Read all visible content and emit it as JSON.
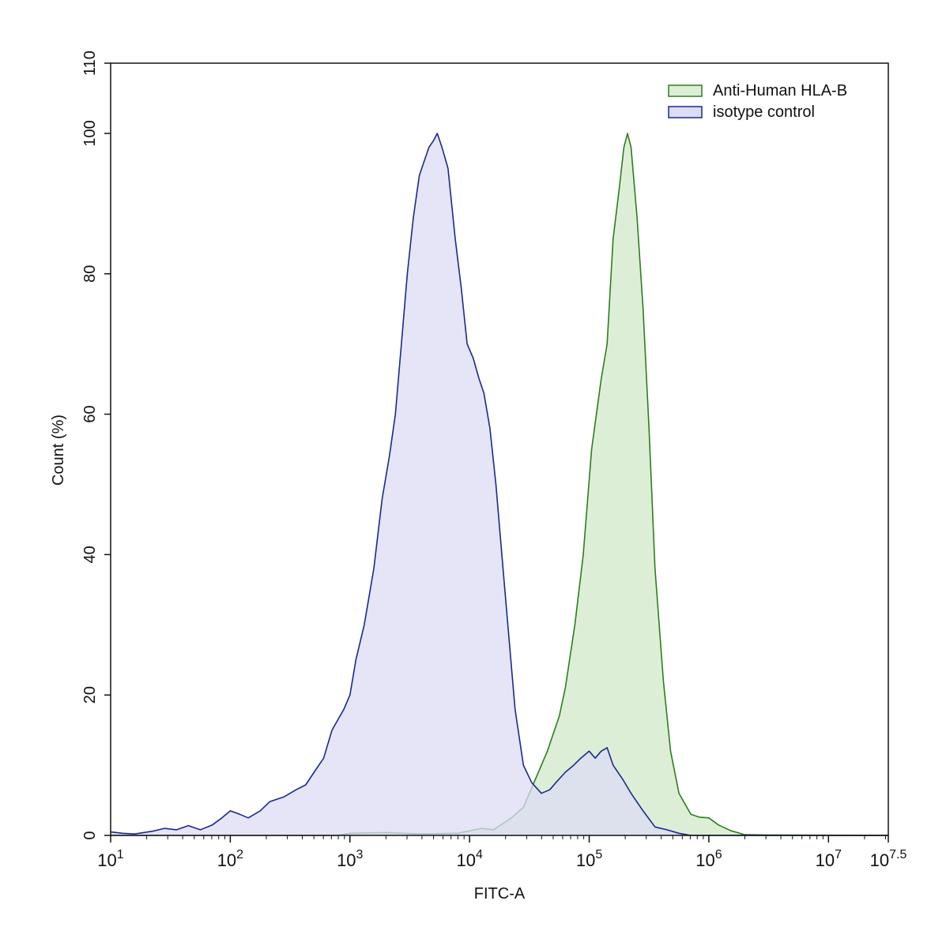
{
  "chart_data": {
    "type": "area",
    "x_scale": "log10",
    "xlim_log10": [
      1,
      7.5
    ],
    "ylim": [
      0,
      110
    ],
    "xlabel": "FITC-A",
    "ylabel": "Count  (%)",
    "y_ticks": [
      0,
      20,
      40,
      60,
      80,
      100,
      110
    ],
    "y_tick_labels": [
      "0",
      "20",
      "40",
      "60",
      "80",
      "100",
      "110"
    ],
    "x_tick_labels": [
      {
        "base": "10",
        "exp": "1",
        "log10": 1
      },
      {
        "base": "10",
        "exp": "2",
        "log10": 2
      },
      {
        "base": "10",
        "exp": "3",
        "log10": 3
      },
      {
        "base": "10",
        "exp": "4",
        "log10": 4
      },
      {
        "base": "10",
        "exp": "5",
        "log10": 5
      },
      {
        "base": "10",
        "exp": "6",
        "log10": 6
      },
      {
        "base": "10",
        "exp": "7",
        "log10": 7
      },
      {
        "base": "10",
        "exp": "7.5",
        "log10": 7.5
      }
    ],
    "legend_position": "top-right",
    "series": [
      {
        "name": "Anti-Human HLA-B",
        "stroke": "#2e7d1e",
        "fill": "#dcefd6",
        "points": [
          [
            1.0,
            0
          ],
          [
            2.0,
            0
          ],
          [
            2.9,
            0
          ],
          [
            3.0,
            0.3
          ],
          [
            3.3,
            0.4
          ],
          [
            3.6,
            0.2
          ],
          [
            3.9,
            0.3
          ],
          [
            4.1,
            1.0
          ],
          [
            4.2,
            0.8
          ],
          [
            4.35,
            2.5
          ],
          [
            4.45,
            4
          ],
          [
            4.55,
            8
          ],
          [
            4.65,
            12
          ],
          [
            4.75,
            17
          ],
          [
            4.8,
            21
          ],
          [
            4.88,
            30
          ],
          [
            4.95,
            40
          ],
          [
            5.02,
            55
          ],
          [
            5.1,
            65
          ],
          [
            5.15,
            70
          ],
          [
            5.2,
            85
          ],
          [
            5.25,
            92
          ],
          [
            5.29,
            98
          ],
          [
            5.32,
            100
          ],
          [
            5.35,
            98
          ],
          [
            5.4,
            88
          ],
          [
            5.45,
            75
          ],
          [
            5.5,
            58
          ],
          [
            5.55,
            38
          ],
          [
            5.62,
            22
          ],
          [
            5.68,
            12
          ],
          [
            5.75,
            6
          ],
          [
            5.85,
            3
          ],
          [
            5.92,
            2.6
          ],
          [
            6.0,
            2.5
          ],
          [
            6.08,
            1.5
          ],
          [
            6.18,
            0.7
          ],
          [
            6.3,
            0.1
          ],
          [
            6.5,
            0.05
          ],
          [
            7.5,
            0
          ]
        ]
      },
      {
        "name": "isotype control",
        "stroke": "#1a2a8c",
        "fill": "#dcdcf4",
        "points": [
          [
            1.0,
            0.5
          ],
          [
            1.1,
            0.3
          ],
          [
            1.2,
            0.2
          ],
          [
            1.35,
            0.6
          ],
          [
            1.45,
            1.0
          ],
          [
            1.55,
            0.8
          ],
          [
            1.65,
            1.4
          ],
          [
            1.75,
            0.8
          ],
          [
            1.85,
            1.5
          ],
          [
            1.93,
            2.5
          ],
          [
            2.0,
            3.5
          ],
          [
            2.08,
            3.0
          ],
          [
            2.15,
            2.5
          ],
          [
            2.25,
            3.5
          ],
          [
            2.33,
            4.8
          ],
          [
            2.45,
            5.5
          ],
          [
            2.55,
            6.5
          ],
          [
            2.63,
            7.2
          ],
          [
            2.7,
            9
          ],
          [
            2.78,
            11
          ],
          [
            2.85,
            15
          ],
          [
            2.95,
            18
          ],
          [
            3.0,
            20
          ],
          [
            3.05,
            25
          ],
          [
            3.12,
            30
          ],
          [
            3.2,
            38
          ],
          [
            3.27,
            48
          ],
          [
            3.33,
            54
          ],
          [
            3.38,
            60
          ],
          [
            3.43,
            70
          ],
          [
            3.48,
            80
          ],
          [
            3.53,
            88
          ],
          [
            3.58,
            94
          ],
          [
            3.62,
            96
          ],
          [
            3.66,
            98
          ],
          [
            3.7,
            99
          ],
          [
            3.73,
            100
          ],
          [
            3.77,
            98
          ],
          [
            3.82,
            95
          ],
          [
            3.88,
            85
          ],
          [
            3.93,
            78
          ],
          [
            3.98,
            70
          ],
          [
            4.03,
            68
          ],
          [
            4.08,
            65
          ],
          [
            4.12,
            63
          ],
          [
            4.17,
            58
          ],
          [
            4.22,
            50
          ],
          [
            4.28,
            38
          ],
          [
            4.33,
            28
          ],
          [
            4.38,
            18
          ],
          [
            4.45,
            10
          ],
          [
            4.52,
            7.5
          ],
          [
            4.6,
            6
          ],
          [
            4.67,
            6.5
          ],
          [
            4.72,
            7.5
          ],
          [
            4.8,
            9
          ],
          [
            4.87,
            10
          ],
          [
            4.93,
            11
          ],
          [
            5.0,
            12
          ],
          [
            5.05,
            11
          ],
          [
            5.1,
            12
          ],
          [
            5.15,
            12.5
          ],
          [
            5.2,
            10
          ],
          [
            5.28,
            8
          ],
          [
            5.35,
            6
          ],
          [
            5.45,
            3.5
          ],
          [
            5.55,
            1.2
          ],
          [
            5.65,
            0.8
          ],
          [
            5.75,
            0.3
          ],
          [
            5.85,
            0
          ],
          [
            7.5,
            0
          ]
        ]
      }
    ]
  }
}
